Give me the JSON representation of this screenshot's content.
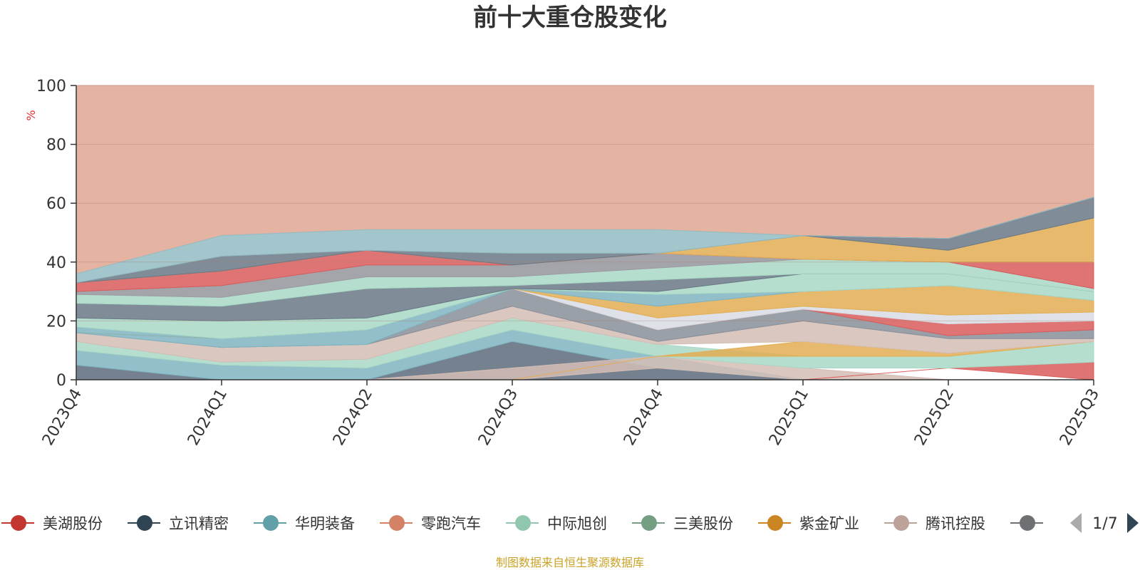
{
  "chart_data": {
    "type": "area",
    "title": "前十大重仓股变化",
    "ylabel": "%",
    "ylim": [
      0,
      100
    ],
    "yticks": [
      0,
      20,
      40,
      60,
      80,
      100
    ],
    "categories": [
      "2023Q4",
      "2024Q1",
      "2024Q2",
      "2024Q3",
      "2024Q4",
      "2025Q1",
      "2025Q2",
      "2025Q3"
    ],
    "bands": [
      {
        "color": "#5d6b7a",
        "lower": [
          0,
          0,
          0,
          0,
          0,
          0,
          0,
          0
        ],
        "upper": [
          5,
          0,
          0,
          13,
          4,
          0,
          0,
          0
        ]
      },
      {
        "color": "#7fb4c0",
        "lower": [
          5,
          0,
          0,
          13,
          4,
          0,
          0,
          0
        ],
        "upper": [
          10,
          5,
          4,
          17,
          8,
          0,
          0,
          0
        ]
      },
      {
        "color": "#d3bdb5",
        "lower": [
          0,
          0,
          0,
          0,
          4,
          0,
          0,
          0
        ],
        "upper": [
          0,
          0,
          0,
          4,
          8,
          4,
          0,
          0
        ]
      },
      {
        "color": "#d95c5c",
        "lower": [
          0,
          0,
          0,
          0,
          0,
          0,
          4,
          0
        ],
        "upper": [
          0,
          0,
          0,
          0,
          0,
          0,
          4,
          6
        ]
      },
      {
        "color": "#a8d8c5",
        "lower": [
          10,
          5,
          4,
          17,
          8,
          4,
          4,
          6
        ],
        "upper": [
          13,
          6,
          7,
          21,
          12,
          8,
          8,
          13
        ]
      },
      {
        "color": "#e3ad54",
        "lower": [
          0,
          0,
          0,
          0,
          8,
          8,
          8,
          13
        ],
        "upper": [
          0,
          0,
          0,
          0,
          8,
          13,
          9,
          13
        ]
      },
      {
        "color": "#d3bdb5",
        "lower": [
          13,
          6,
          7,
          21,
          12,
          13,
          9,
          13
        ],
        "upper": [
          16,
          11,
          12,
          25,
          13,
          20,
          14,
          14
        ]
      },
      {
        "color": "#888f99",
        "lower": [
          16,
          11,
          12,
          25,
          13,
          20,
          14,
          14
        ],
        "upper": [
          16,
          11,
          12,
          31,
          17,
          24,
          15,
          17
        ]
      },
      {
        "color": "#d95c5c",
        "lower": [
          16,
          14,
          17,
          31,
          17,
          24,
          15,
          17
        ],
        "upper": [
          16,
          14,
          17,
          31,
          17,
          24,
          19,
          20
        ]
      },
      {
        "color": "#d8dde4",
        "lower": [
          16,
          14,
          17,
          31,
          17,
          24,
          19,
          20
        ],
        "upper": [
          16,
          14,
          17,
          31,
          21,
          25,
          22,
          23
        ]
      },
      {
        "color": "#e3ad54",
        "lower": [
          16,
          14,
          17,
          31,
          21,
          25,
          22,
          23
        ],
        "upper": [
          16,
          14,
          17,
          31,
          25,
          30,
          32,
          27
        ]
      },
      {
        "color": "#7fb4c0",
        "lower": [
          16,
          11,
          12,
          31,
          25,
          30,
          32,
          27
        ],
        "upper": [
          18,
          14,
          17,
          31,
          29,
          30,
          32,
          27
        ]
      },
      {
        "color": "#a8d8c5",
        "lower": [
          18,
          14,
          17,
          31,
          29,
          30,
          32,
          27
        ],
        "upper": [
          21,
          20,
          21,
          31,
          30,
          36,
          36,
          30
        ]
      },
      {
        "color": "#6a7886",
        "lower": [
          21,
          20,
          21,
          31,
          30,
          36,
          36,
          30
        ],
        "upper": [
          26,
          25,
          31,
          32,
          34,
          36,
          36,
          30
        ]
      },
      {
        "color": "#a8d8c5",
        "lower": [
          26,
          25,
          31,
          32,
          34,
          36,
          36,
          30
        ],
        "upper": [
          29,
          28,
          35,
          35,
          38,
          41,
          40,
          31
        ]
      },
      {
        "color": "#d8dde4",
        "lower": [
          29,
          28,
          35,
          35,
          38,
          41,
          40,
          31
        ],
        "upper": [
          30,
          32,
          39,
          39,
          43,
          41,
          40,
          31
        ]
      },
      {
        "color": "#9a9aa0",
        "lower": [
          29,
          28,
          35,
          35,
          38,
          41,
          40,
          31
        ],
        "upper": [
          30,
          32,
          39,
          39,
          43,
          41,
          40,
          31
        ]
      },
      {
        "color": "#d95c5c",
        "lower": [
          30,
          32,
          39,
          39,
          43,
          41,
          40,
          31
        ],
        "upper": [
          33,
          37,
          44,
          39,
          43,
          41,
          40,
          40
        ]
      },
      {
        "color": "#e3ad54",
        "lower": [
          33,
          37,
          44,
          39,
          43,
          41,
          40,
          40
        ],
        "upper": [
          33,
          37,
          44,
          39,
          43,
          49,
          44,
          55
        ]
      },
      {
        "color": "#6a7886",
        "lower": [
          33,
          37,
          44,
          39,
          43,
          49,
          44,
          55
        ],
        "upper": [
          33,
          42,
          44,
          43,
          43,
          49,
          48,
          62
        ]
      },
      {
        "color": "#93bcc4",
        "lower": [
          33,
          42,
          44,
          43,
          43,
          49,
          48,
          62
        ],
        "upper": [
          36,
          49,
          51,
          51,
          51,
          49,
          48,
          62
        ]
      },
      {
        "color": "#e0a690",
        "lower": [
          36,
          49,
          51,
          51,
          51,
          49,
          48,
          62
        ],
        "upper": [
          100,
          100,
          100,
          100,
          100,
          100,
          100,
          100
        ]
      }
    ],
    "legend": {
      "position": "bottom",
      "page": "1/7",
      "items": [
        {
          "name": "美湖股份",
          "color": "#c23531"
        },
        {
          "name": "立讯精密",
          "color": "#2f4554"
        },
        {
          "name": "华明装备",
          "color": "#61a0a8"
        },
        {
          "name": "零跑汽车",
          "color": "#d48265"
        },
        {
          "name": "中际旭创",
          "color": "#91c7ae"
        },
        {
          "name": "三美股份",
          "color": "#749f83"
        },
        {
          "name": "紫金矿业",
          "color": "#ca8622"
        },
        {
          "name": "腾讯控股",
          "color": "#bda29a"
        },
        {
          "name": "",
          "color": "#6e7074"
        }
      ]
    },
    "grid": true
  },
  "source_note": "制图数据来自恒生聚源数据库"
}
